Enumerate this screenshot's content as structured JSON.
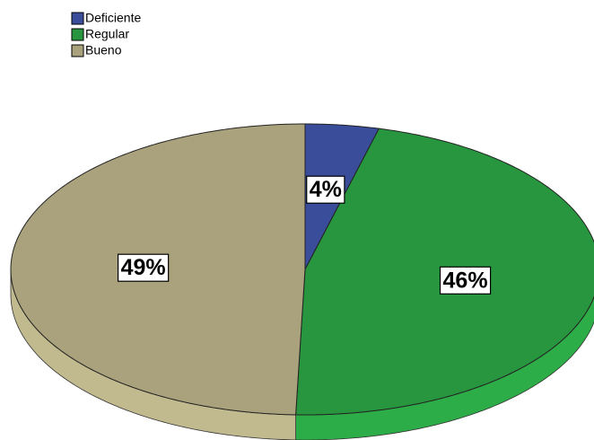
{
  "chart_data": {
    "type": "pie",
    "categories": [
      "Deficiente",
      "Regular",
      "Bueno"
    ],
    "values": [
      4,
      46,
      49
    ],
    "value_labels": [
      "4%",
      "46%",
      "49%"
    ],
    "colors": [
      "#3a4d9a",
      "#27963e",
      "#a9a27c"
    ],
    "legend": "top-left"
  }
}
